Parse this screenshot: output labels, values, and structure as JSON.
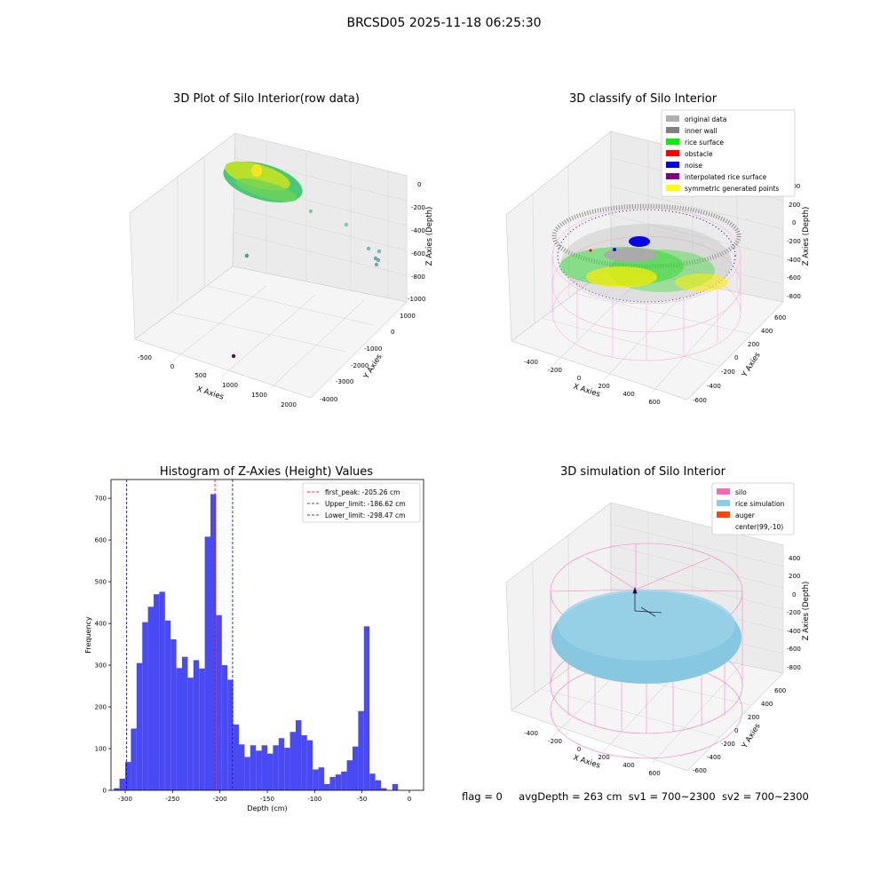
{
  "suptitle": "BRCSD05 2025-11-18 06:25:30",
  "panels": {
    "raw": {
      "title": "3D Plot of Silo Interior(row data)",
      "x_label": "X Axies",
      "y_label": "Y Axies",
      "z_label": "Z Axies (Depth)",
      "x_ticks": [
        "-500",
        "0",
        "500",
        "1000",
        "1500",
        "2000"
      ],
      "y_ticks": [
        "1000",
        "0",
        "-1000",
        "-2000",
        "-3000",
        "-4000"
      ],
      "z_ticks": [
        "0",
        "-200",
        "-400",
        "-600",
        "-800",
        "-1000"
      ]
    },
    "classify": {
      "title": "3D classify of Silo Interior",
      "x_label": "X Axies",
      "y_label": "Y Axies",
      "z_label": "Z Axies (Depth)",
      "x_ticks": [
        "-400",
        "-200",
        "0",
        "200",
        "400",
        "600"
      ],
      "y_ticks": [
        "600",
        "400",
        "200",
        "0",
        "-200",
        "-400",
        "-600"
      ],
      "z_ticks": [
        "200",
        "0",
        "-200",
        "-400",
        "-600",
        "-800"
      ],
      "legend": [
        {
          "label": "original data",
          "color": "#b0b0b0"
        },
        {
          "label": "inner wall",
          "color": "#808080"
        },
        {
          "label": "rice surface",
          "color": "#00ee00"
        },
        {
          "label": "obstacle",
          "color": "#ff0000"
        },
        {
          "label": "noise",
          "color": "#0000ee"
        },
        {
          "label": "interpolated rice surface",
          "color": "#800080"
        },
        {
          "label": "symmetric generated points",
          "color": "#ffff00"
        }
      ]
    },
    "simulation": {
      "title": "3D simulation of Silo Interior",
      "x_label": "X Axies",
      "y_label": "Y Axies",
      "z_label": "Z Axies (Depth)",
      "x_ticks": [
        "-400",
        "-200",
        "0",
        "200",
        "400",
        "600"
      ],
      "y_ticks": [
        "600",
        "400",
        "200",
        "0",
        "-200",
        "-400",
        "-600"
      ],
      "z_ticks": [
        "400",
        "200",
        "0",
        "-200",
        "-400",
        "-600",
        "-800"
      ],
      "legend": [
        {
          "label": "silo",
          "color": "#ff69b4"
        },
        {
          "label": "rice simulation",
          "color": "#87ceeb"
        },
        {
          "label": "auger",
          "color": "#ff4500"
        },
        {
          "label": "center(99,-10)",
          "color": ""
        }
      ]
    }
  },
  "footer": {
    "flag": "flag = 0",
    "avg": "avgDepth = 263 cm",
    "sv1": "sv1 = 700~2300",
    "sv2": "sv2 = 700~2300"
  },
  "chart_data": {
    "type": "bar",
    "title": "Histogram of Z-Axies (Height) Values",
    "xlabel": "Depth (cm)",
    "ylabel": "Frequency",
    "xlim": [
      -315,
      15
    ],
    "ylim": [
      0,
      745
    ],
    "x_ticks": [
      -300,
      -250,
      -200,
      -150,
      -100,
      -50,
      0
    ],
    "y_ticks": [
      0,
      100,
      200,
      300,
      400,
      500,
      600,
      700
    ],
    "bar_color": "#4a4af5",
    "bin_width": 6,
    "bin_start": -312,
    "values": [
      5,
      28,
      68,
      148,
      305,
      403,
      440,
      470,
      476,
      407,
      362,
      293,
      320,
      270,
      312,
      292,
      608,
      710,
      420,
      300,
      265,
      158,
      110,
      80,
      108,
      95,
      108,
      88,
      108,
      125,
      102,
      140,
      168,
      132,
      120,
      50,
      55,
      15,
      32,
      38,
      45,
      72,
      105,
      190,
      393,
      40,
      24,
      5,
      0,
      15
    ],
    "vlines": [
      {
        "name": "first_peak",
        "x": -205.26,
        "color": "#ff0000",
        "label": "first_peak: -205.26 cm"
      },
      {
        "name": "upper-limit",
        "x": -186.62,
        "color": "#0000cc",
        "label": "Upper_limit: -186.62 cm"
      },
      {
        "name": "lower-limit",
        "x": -298.47,
        "color": "#0000cc",
        "label": "Lower_limit: -298.47 cm"
      }
    ],
    "legend_position": "upper right"
  }
}
